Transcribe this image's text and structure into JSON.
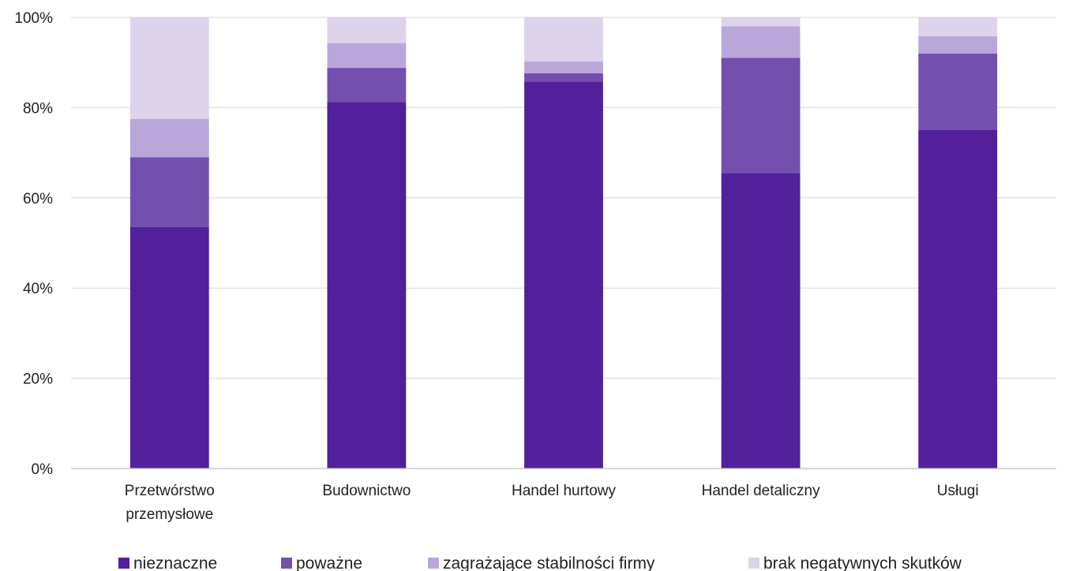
{
  "chart_data": {
    "type": "bar",
    "stacked": true,
    "title": "",
    "xlabel": "",
    "ylabel": "",
    "ylim": [
      0,
      100
    ],
    "y_ticks": [
      "0%",
      "20%",
      "40%",
      "60%",
      "80%",
      "100%"
    ],
    "grid": true,
    "legend_position": "bottom",
    "categories": [
      [
        "Przetwórstwo",
        "przemysłowe"
      ],
      [
        "Budownictwo"
      ],
      [
        "Handel hurtowy"
      ],
      [
        "Handel detaliczny"
      ],
      [
        "Usługi"
      ]
    ],
    "series": [
      {
        "name": "nieznaczne",
        "color": "#52209A",
        "values": [
          53.5,
          81.2,
          85.8,
          65.5,
          75.0
        ]
      },
      {
        "name": "poważne",
        "color": "#7350AE",
        "values": [
          15.5,
          7.6,
          1.8,
          25.5,
          17.0
        ]
      },
      {
        "name": "zagrażające stabilności firmy",
        "color": "#B8A7D8",
        "values": [
          8.5,
          5.5,
          2.6,
          7.0,
          3.8
        ]
      },
      {
        "name": "brak negatywnych skutków",
        "color": "#DDD3EB",
        "values": [
          22.5,
          5.7,
          9.8,
          2.0,
          4.2
        ]
      }
    ],
    "gridline_color": "#D9D9D9",
    "axis_color": "#BFBFBF"
  }
}
